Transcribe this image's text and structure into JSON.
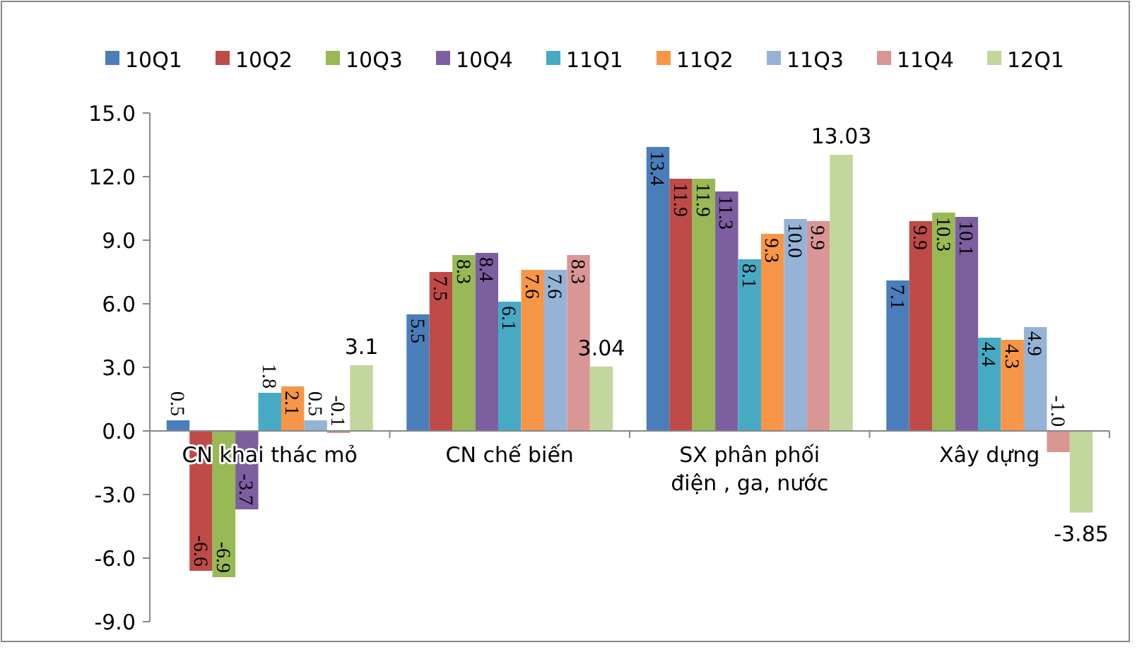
{
  "chart_data": {
    "type": "bar",
    "categories": [
      "CN khai thác mỏ",
      "CN chế biến",
      "SX phân phối\nđiện , ga, nước",
      "Xây dựng"
    ],
    "series": [
      {
        "name": "10Q1",
        "color": "#4a7ebb",
        "values": [
          0.5,
          5.5,
          13.4,
          7.1
        ],
        "value_labels": [
          "0.5",
          "5.5",
          "13.4",
          "7.1"
        ]
      },
      {
        "name": "10Q2",
        "color": "#be4b48",
        "values": [
          -6.6,
          7.5,
          11.9,
          9.9
        ],
        "value_labels": [
          "-6.6",
          "7.5",
          "11.9",
          "9.9"
        ]
      },
      {
        "name": "10Q3",
        "color": "#98b954",
        "values": [
          -6.9,
          8.3,
          11.9,
          10.3
        ],
        "value_labels": [
          "-6.9",
          "8.3",
          "11.9",
          "10.3"
        ]
      },
      {
        "name": "10Q4",
        "color": "#7d5fa0",
        "values": [
          -3.7,
          8.4,
          11.3,
          10.1
        ],
        "value_labels": [
          "-3.7",
          "8.4",
          "11.3",
          "10.1"
        ]
      },
      {
        "name": "11Q1",
        "color": "#46aac5",
        "values": [
          1.8,
          6.1,
          8.1,
          4.4
        ],
        "value_labels": [
          "1.8",
          "6.1",
          "8.1",
          "4.4"
        ]
      },
      {
        "name": "11Q2",
        "color": "#f79646",
        "values": [
          2.1,
          7.6,
          9.3,
          4.3
        ],
        "value_labels": [
          "2.1",
          "7.6",
          "9.3",
          "4.3"
        ]
      },
      {
        "name": "11Q3",
        "color": "#95b3d7",
        "values": [
          0.5,
          7.6,
          10.0,
          4.9
        ],
        "value_labels": [
          "0.5",
          "7.6",
          "10.0",
          "4.9"
        ]
      },
      {
        "name": "11Q4",
        "color": "#d99694",
        "values": [
          -0.1,
          8.3,
          9.9,
          -1.0
        ],
        "value_labels": [
          "-0.1",
          "8.3",
          "9.9",
          "-1.0"
        ]
      },
      {
        "name": "12Q1",
        "color": "#c3d69b",
        "values": [
          3.1,
          3.04,
          13.03,
          -3.85
        ],
        "value_labels": [
          "3.1",
          "3.04",
          "13.03",
          "-3.85"
        ]
      }
    ],
    "ylim": [
      -9,
      15
    ],
    "yticks": [
      {
        "value": -9,
        "label": "-9.0"
      },
      {
        "value": -6,
        "label": "-6.0"
      },
      {
        "value": -3,
        "label": "-3.0"
      },
      {
        "value": 0,
        "label": "0.0"
      },
      {
        "value": 3,
        "label": "3.0"
      },
      {
        "value": 6,
        "label": "6.0"
      },
      {
        "value": 9,
        "label": "9.0"
      },
      {
        "value": 12,
        "label": "12.0"
      },
      {
        "value": 15,
        "label": "15.0"
      }
    ],
    "grid": false,
    "legend": "top"
  }
}
